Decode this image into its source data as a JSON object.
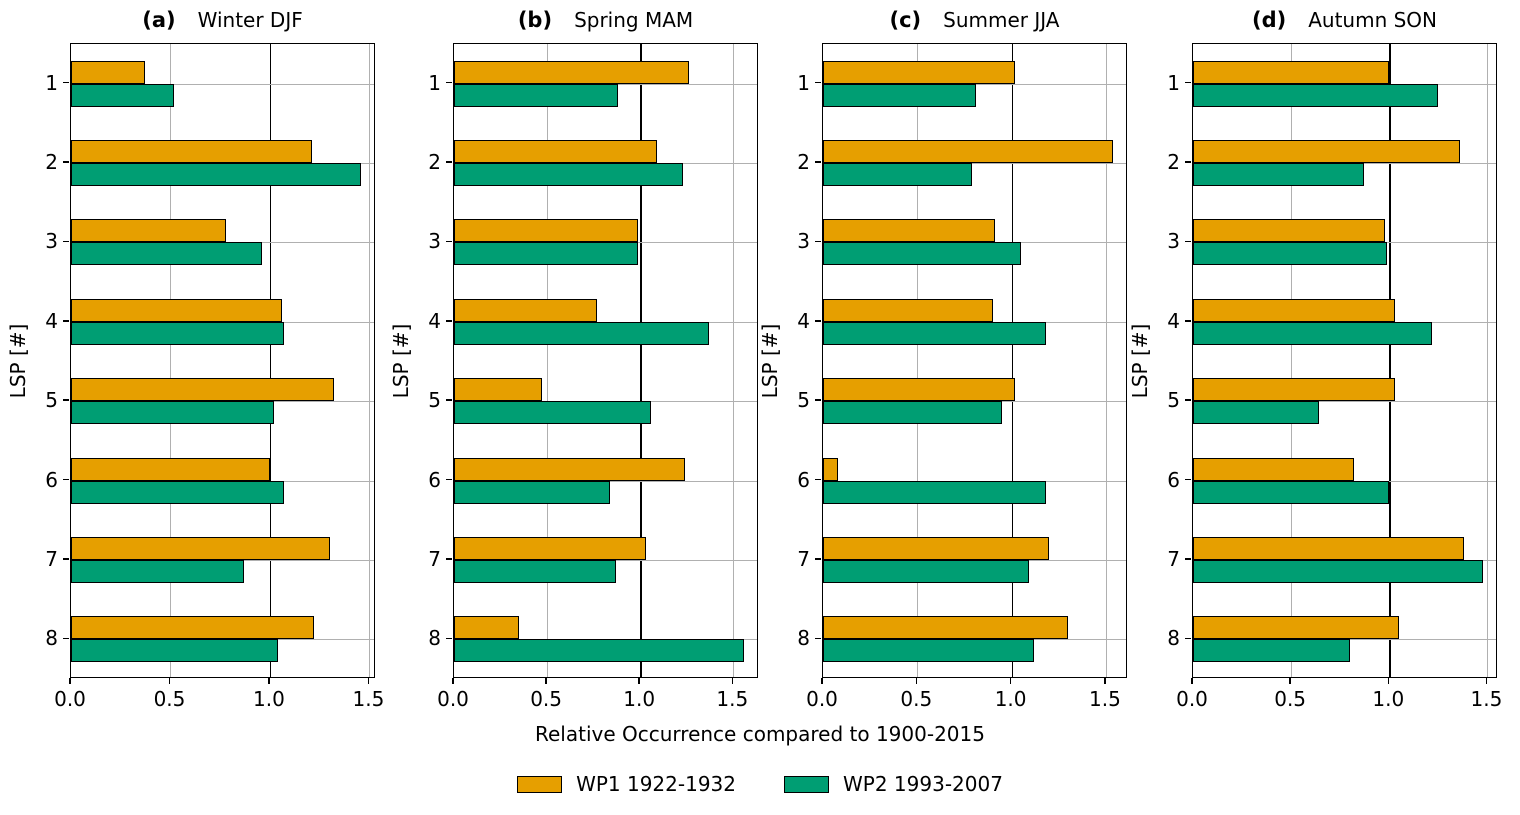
{
  "figure": {
    "xlabel": "Relative Occurrence compared to 1900-2015",
    "ylabel": "LSP [#]",
    "legend": [
      {
        "label": "WP1 1922-1932",
        "color": "#E69F00"
      },
      {
        "label": "WP2 1993-2007",
        "color": "#009E73"
      }
    ],
    "colors": {
      "wp1": "#E69F00",
      "wp2": "#009E73",
      "grid": "#b0b0b0",
      "reference_line": "#000000"
    }
  },
  "chart_data": [
    {
      "type": "bar",
      "orientation": "horizontal",
      "panel_letter": "(a)",
      "title": "Winter DJF",
      "ylabel": "LSP [#]",
      "categories": [
        "1",
        "2",
        "3",
        "4",
        "5",
        "6",
        "7",
        "8"
      ],
      "xtick_labels": [
        "0.0",
        "0.5",
        "1.0",
        "1.5"
      ],
      "xticks": [
        0.0,
        0.5,
        1.0,
        1.5
      ],
      "xlim": [
        0,
        1.533
      ],
      "reference_line_x": 1.0,
      "grid": true,
      "series": [
        {
          "name": "WP1 1922-1932",
          "color": "#E69F00",
          "values": [
            0.37,
            1.21,
            0.78,
            1.06,
            1.32,
            1.0,
            1.3,
            1.22
          ]
        },
        {
          "name": "WP2 1993-2007",
          "color": "#009E73",
          "values": [
            0.52,
            1.46,
            0.96,
            1.07,
            1.02,
            1.07,
            0.87,
            1.04
          ]
        }
      ]
    },
    {
      "type": "bar",
      "orientation": "horizontal",
      "panel_letter": "(b)",
      "title": "Spring MAM",
      "ylabel": "LSP [#]",
      "categories": [
        "1",
        "2",
        "3",
        "4",
        "5",
        "6",
        "7",
        "8"
      ],
      "xtick_labels": [
        "0.0",
        "0.5",
        "1.0",
        "1.5"
      ],
      "xticks": [
        0.0,
        0.5,
        1.0,
        1.5
      ],
      "xlim": [
        0,
        1.638
      ],
      "reference_line_x": 1.0,
      "grid": true,
      "series": [
        {
          "name": "WP1 1922-1932",
          "color": "#E69F00",
          "values": [
            1.26,
            1.09,
            0.99,
            0.77,
            0.47,
            1.24,
            1.03,
            0.35
          ]
        },
        {
          "name": "WP2 1993-2007",
          "color": "#009E73",
          "values": [
            0.88,
            1.23,
            0.99,
            1.37,
            1.06,
            0.84,
            0.87,
            1.56
          ]
        }
      ]
    },
    {
      "type": "bar",
      "orientation": "horizontal",
      "panel_letter": "(c)",
      "title": "Summer JJA",
      "ylabel": "LSP [#]",
      "categories": [
        "1",
        "2",
        "3",
        "4",
        "5",
        "6",
        "7",
        "8"
      ],
      "xtick_labels": [
        "0.0",
        "0.5",
        "1.0",
        "1.5"
      ],
      "xticks": [
        0.0,
        0.5,
        1.0,
        1.5
      ],
      "xlim": [
        0,
        1.617
      ],
      "reference_line_x": 1.0,
      "grid": true,
      "series": [
        {
          "name": "WP1 1922-1932",
          "color": "#E69F00",
          "values": [
            1.02,
            1.54,
            0.91,
            0.9,
            1.02,
            0.08,
            1.2,
            1.3
          ]
        },
        {
          "name": "WP2 1993-2007",
          "color": "#009E73",
          "values": [
            0.81,
            0.79,
            1.05,
            1.18,
            0.95,
            1.18,
            1.09,
            1.12
          ]
        }
      ]
    },
    {
      "type": "bar",
      "orientation": "horizontal",
      "panel_letter": "(d)",
      "title": "Autumn SON",
      "ylabel": "LSP [#]",
      "categories": [
        "1",
        "2",
        "3",
        "4",
        "5",
        "6",
        "7",
        "8"
      ],
      "xtick_labels": [
        "0.0",
        "0.5",
        "1.0",
        "1.5"
      ],
      "xticks": [
        0.0,
        0.5,
        1.0,
        1.5
      ],
      "xlim": [
        0,
        1.554
      ],
      "reference_line_x": 1.0,
      "grid": true,
      "series": [
        {
          "name": "WP1 1922-1932",
          "color": "#E69F00",
          "values": [
            1.0,
            1.36,
            0.98,
            1.03,
            1.03,
            0.82,
            1.38,
            1.05
          ]
        },
        {
          "name": "WP2 1993-2007",
          "color": "#009E73",
          "values": [
            1.25,
            0.87,
            0.99,
            1.22,
            0.64,
            1.0,
            1.48,
            0.8
          ]
        }
      ]
    }
  ]
}
